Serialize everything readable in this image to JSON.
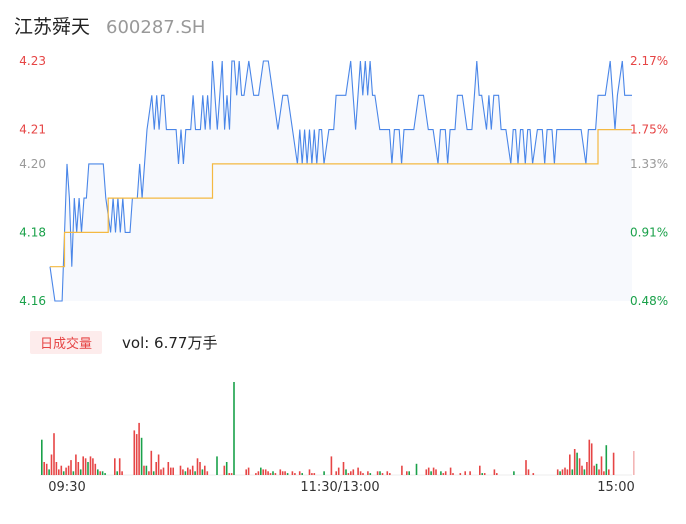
{
  "header": {
    "name": "江苏舜天",
    "code": "600287.SH"
  },
  "colors": {
    "up": "#e64545",
    "down": "#1aa14a",
    "neutral": "#999999",
    "price_line": "#4a86e8",
    "avg_line": "#f4b942",
    "area": "#f7f9fd"
  },
  "volume_panel": {
    "badge": "日成交量",
    "vol_label": "vol: 6.77万手"
  },
  "chart_data": {
    "type": "line",
    "title": "",
    "y_ticks": [
      {
        "price": "4.23",
        "pct": "2.17%",
        "tone": "up"
      },
      {
        "price": "4.21",
        "pct": "1.75%",
        "tone": "up"
      },
      {
        "price": "4.20",
        "pct": "1.33%",
        "tone": "neutral"
      },
      {
        "price": "4.18",
        "pct": "0.91%",
        "tone": "down"
      },
      {
        "price": "4.16",
        "pct": "0.48%",
        "tone": "down"
      }
    ],
    "ylim": [
      4.16,
      4.23
    ],
    "x_ticks": [
      "09:30",
      "11:30/13:00",
      "15:00"
    ],
    "minutes": 240,
    "price_series": [
      [
        0,
        4.17
      ],
      [
        2,
        4.16
      ],
      [
        5,
        4.16
      ],
      [
        7,
        4.2
      ],
      [
        8,
        4.19
      ],
      [
        9,
        4.17
      ],
      [
        10,
        4.19
      ],
      [
        11,
        4.18
      ],
      [
        12,
        4.19
      ],
      [
        13,
        4.18
      ],
      [
        14,
        4.19
      ],
      [
        15,
        4.19
      ],
      [
        16,
        4.2
      ],
      [
        20,
        4.2
      ],
      [
        22,
        4.2
      ],
      [
        23,
        4.19
      ],
      [
        25,
        4.18
      ],
      [
        26,
        4.19
      ],
      [
        27,
        4.18
      ],
      [
        28,
        4.19
      ],
      [
        29,
        4.18
      ],
      [
        30,
        4.19
      ],
      [
        31,
        4.18
      ],
      [
        33,
        4.18
      ],
      [
        34,
        4.19
      ],
      [
        36,
        4.19
      ],
      [
        37,
        4.2
      ],
      [
        38,
        4.19
      ],
      [
        40,
        4.21
      ],
      [
        42,
        4.22
      ],
      [
        43,
        4.21
      ],
      [
        44,
        4.22
      ],
      [
        45,
        4.21
      ],
      [
        46,
        4.22
      ],
      [
        47,
        4.22
      ],
      [
        48,
        4.21
      ],
      [
        50,
        4.21
      ],
      [
        52,
        4.21
      ],
      [
        53,
        4.2
      ],
      [
        54,
        4.21
      ],
      [
        55,
        4.2
      ],
      [
        56,
        4.21
      ],
      [
        58,
        4.21
      ],
      [
        59,
        4.22
      ],
      [
        60,
        4.21
      ],
      [
        62,
        4.21
      ],
      [
        63,
        4.22
      ],
      [
        64,
        4.21
      ],
      [
        65,
        4.22
      ],
      [
        66,
        4.21
      ],
      [
        67,
        4.23
      ],
      [
        68,
        4.22
      ],
      [
        69,
        4.21
      ],
      [
        70,
        4.22
      ],
      [
        71,
        4.23
      ],
      [
        72,
        4.21
      ],
      [
        73,
        4.22
      ],
      [
        74,
        4.21
      ],
      [
        75,
        4.23
      ],
      [
        76,
        4.23
      ],
      [
        77,
        4.22
      ],
      [
        78,
        4.23
      ],
      [
        79,
        4.22
      ],
      [
        80,
        4.22
      ],
      [
        82,
        4.23
      ],
      [
        84,
        4.22
      ],
      [
        86,
        4.22
      ],
      [
        88,
        4.23
      ],
      [
        90,
        4.23
      ],
      [
        92,
        4.22
      ],
      [
        94,
        4.21
      ],
      [
        96,
        4.22
      ],
      [
        98,
        4.22
      ],
      [
        100,
        4.21
      ],
      [
        102,
        4.2
      ],
      [
        103,
        4.21
      ],
      [
        104,
        4.2
      ],
      [
        105,
        4.21
      ],
      [
        106,
        4.2
      ],
      [
        107,
        4.21
      ],
      [
        108,
        4.2
      ],
      [
        109,
        4.21
      ],
      [
        110,
        4.2
      ],
      [
        111,
        4.21
      ],
      [
        112,
        4.21
      ],
      [
        113,
        4.2
      ],
      [
        115,
        4.21
      ],
      [
        117,
        4.21
      ],
      [
        118,
        4.22
      ],
      [
        120,
        4.22
      ],
      [
        122,
        4.22
      ],
      [
        124,
        4.23
      ],
      [
        125,
        4.22
      ],
      [
        126,
        4.21
      ],
      [
        127,
        4.22
      ],
      [
        128,
        4.23
      ],
      [
        129,
        4.22
      ],
      [
        130,
        4.23
      ],
      [
        131,
        4.22
      ],
      [
        132,
        4.23
      ],
      [
        133,
        4.22
      ],
      [
        134,
        4.22
      ],
      [
        136,
        4.21
      ],
      [
        138,
        4.21
      ],
      [
        140,
        4.21
      ],
      [
        141,
        4.2
      ],
      [
        142,
        4.21
      ],
      [
        144,
        4.21
      ],
      [
        145,
        4.2
      ],
      [
        146,
        4.21
      ],
      [
        148,
        4.21
      ],
      [
        150,
        4.21
      ],
      [
        152,
        4.22
      ],
      [
        154,
        4.22
      ],
      [
        156,
        4.21
      ],
      [
        158,
        4.21
      ],
      [
        160,
        4.2
      ],
      [
        161,
        4.21
      ],
      [
        163,
        4.21
      ],
      [
        164,
        4.2
      ],
      [
        165,
        4.21
      ],
      [
        167,
        4.21
      ],
      [
        168,
        4.22
      ],
      [
        170,
        4.22
      ],
      [
        172,
        4.21
      ],
      [
        174,
        4.21
      ],
      [
        175,
        4.22
      ],
      [
        176,
        4.23
      ],
      [
        177,
        4.22
      ],
      [
        178,
        4.22
      ],
      [
        180,
        4.21
      ],
      [
        181,
        4.22
      ],
      [
        182,
        4.21
      ],
      [
        183,
        4.22
      ],
      [
        185,
        4.22
      ],
      [
        186,
        4.21
      ],
      [
        188,
        4.21
      ],
      [
        190,
        4.2
      ],
      [
        191,
        4.21
      ],
      [
        192,
        4.21
      ],
      [
        193,
        4.2
      ],
      [
        194,
        4.21
      ],
      [
        195,
        4.21
      ],
      [
        196,
        4.2
      ],
      [
        197,
        4.21
      ],
      [
        198,
        4.21
      ],
      [
        199,
        4.2
      ],
      [
        201,
        4.21
      ],
      [
        203,
        4.21
      ],
      [
        204,
        4.2
      ],
      [
        205,
        4.21
      ],
      [
        207,
        4.21
      ],
      [
        208,
        4.2
      ],
      [
        209,
        4.21
      ],
      [
        211,
        4.21
      ],
      [
        213,
        4.21
      ],
      [
        215,
        4.21
      ],
      [
        217,
        4.21
      ],
      [
        219,
        4.21
      ],
      [
        221,
        4.2
      ],
      [
        222,
        4.21
      ],
      [
        223,
        4.21
      ],
      [
        224,
        4.21
      ],
      [
        225,
        4.21
      ],
      [
        226,
        4.22
      ],
      [
        227,
        4.22
      ],
      [
        228,
        4.22
      ],
      [
        229,
        4.22
      ],
      [
        231,
        4.23
      ],
      [
        232,
        4.22
      ],
      [
        233,
        4.21
      ],
      [
        234,
        4.22
      ],
      [
        236,
        4.23
      ],
      [
        237,
        4.22
      ],
      [
        238,
        4.22
      ],
      [
        240,
        4.22
      ]
    ],
    "avg_series": [
      [
        0,
        4.17
      ],
      [
        5,
        4.17
      ],
      [
        6,
        4.18
      ],
      [
        23,
        4.18
      ],
      [
        24,
        4.19
      ],
      [
        66,
        4.19
      ],
      [
        67,
        4.2
      ],
      [
        225,
        4.2
      ],
      [
        226,
        4.21
      ],
      [
        240,
        4.21
      ]
    ],
    "volume": {
      "max": 100,
      "bars": [
        [
          0,
          38,
          "down"
        ],
        [
          1,
          14,
          "up"
        ],
        [
          2,
          12,
          "up"
        ],
        [
          3,
          6,
          "down"
        ],
        [
          4,
          22,
          "up"
        ],
        [
          5,
          45,
          "up"
        ],
        [
          6,
          14,
          "up"
        ],
        [
          7,
          6,
          "up"
        ],
        [
          8,
          10,
          "up"
        ],
        [
          9,
          4,
          "down"
        ],
        [
          10,
          8,
          "up"
        ],
        [
          11,
          10,
          "up"
        ],
        [
          12,
          16,
          "up"
        ],
        [
          13,
          4,
          "down"
        ],
        [
          14,
          22,
          "up"
        ],
        [
          15,
          14,
          "up"
        ],
        [
          16,
          6,
          "down"
        ],
        [
          17,
          20,
          "up"
        ],
        [
          18,
          18,
          "up"
        ],
        [
          19,
          14,
          "down"
        ],
        [
          20,
          20,
          "up"
        ],
        [
          21,
          18,
          "up"
        ],
        [
          22,
          12,
          "up"
        ],
        [
          23,
          6,
          "down"
        ],
        [
          24,
          4,
          "up"
        ],
        [
          25,
          4,
          "down"
        ],
        [
          26,
          2,
          "down"
        ],
        [
          30,
          18,
          "up"
        ],
        [
          31,
          4,
          "down"
        ],
        [
          32,
          18,
          "up"
        ],
        [
          33,
          4,
          "up"
        ],
        [
          38,
          48,
          "up"
        ],
        [
          39,
          44,
          "up"
        ],
        [
          40,
          56,
          "up"
        ],
        [
          41,
          40,
          "down"
        ],
        [
          42,
          10,
          "up"
        ],
        [
          43,
          10,
          "down"
        ],
        [
          44,
          4,
          "up"
        ],
        [
          45,
          26,
          "up"
        ],
        [
          46,
          4,
          "down"
        ],
        [
          47,
          14,
          "up"
        ],
        [
          48,
          22,
          "up"
        ],
        [
          49,
          6,
          "up"
        ],
        [
          50,
          8,
          "up"
        ],
        [
          52,
          14,
          "up"
        ],
        [
          53,
          8,
          "up"
        ],
        [
          54,
          8,
          "up"
        ],
        [
          57,
          10,
          "up"
        ],
        [
          58,
          6,
          "up"
        ],
        [
          59,
          4,
          "down"
        ],
        [
          60,
          8,
          "up"
        ],
        [
          61,
          6,
          "up"
        ],
        [
          62,
          10,
          "up"
        ],
        [
          63,
          4,
          "down"
        ],
        [
          64,
          18,
          "up"
        ],
        [
          65,
          14,
          "up"
        ],
        [
          66,
          6,
          "down"
        ],
        [
          67,
          10,
          "up"
        ],
        [
          68,
          4,
          "up"
        ],
        [
          72,
          20,
          "down"
        ],
        [
          75,
          10,
          "up"
        ],
        [
          76,
          14,
          "down"
        ],
        [
          77,
          2,
          "up"
        ],
        [
          78,
          2,
          "up"
        ],
        [
          79,
          100,
          "down"
        ],
        [
          84,
          6,
          "up"
        ],
        [
          85,
          8,
          "up"
        ],
        [
          88,
          2,
          "up"
        ],
        [
          89,
          4,
          "up"
        ],
        [
          90,
          8,
          "down"
        ],
        [
          91,
          6,
          "up"
        ],
        [
          92,
          6,
          "up"
        ],
        [
          93,
          4,
          "up"
        ],
        [
          94,
          2,
          "up"
        ],
        [
          95,
          4,
          "down"
        ],
        [
          96,
          2,
          "up"
        ],
        [
          98,
          6,
          "up"
        ],
        [
          99,
          4,
          "up"
        ],
        [
          100,
          4,
          "up"
        ],
        [
          101,
          2,
          "down"
        ],
        [
          103,
          4,
          "up"
        ],
        [
          104,
          2,
          "up"
        ],
        [
          106,
          4,
          "up"
        ],
        [
          107,
          2,
          "down"
        ],
        [
          110,
          6,
          "up"
        ],
        [
          111,
          2,
          "up"
        ],
        [
          112,
          2,
          "up"
        ],
        [
          116,
          4,
          "down"
        ],
        [
          119,
          20,
          "up"
        ],
        [
          121,
          4,
          "up"
        ],
        [
          122,
          8,
          "up"
        ],
        [
          124,
          14,
          "up"
        ],
        [
          125,
          6,
          "down"
        ],
        [
          126,
          2,
          "up"
        ],
        [
          127,
          4,
          "up"
        ],
        [
          128,
          6,
          "up"
        ],
        [
          130,
          8,
          "up"
        ],
        [
          131,
          4,
          "up"
        ],
        [
          132,
          2,
          "up"
        ],
        [
          134,
          4,
          "up"
        ],
        [
          135,
          2,
          "down"
        ],
        [
          138,
          4,
          "up"
        ],
        [
          139,
          4,
          "down"
        ],
        [
          140,
          2,
          "up"
        ],
        [
          142,
          4,
          "up"
        ],
        [
          143,
          2,
          "up"
        ],
        [
          148,
          10,
          "up"
        ],
        [
          150,
          4,
          "up"
        ],
        [
          151,
          4,
          "down"
        ],
        [
          154,
          12,
          "down"
        ],
        [
          158,
          6,
          "up"
        ],
        [
          159,
          8,
          "up"
        ],
        [
          160,
          4,
          "down"
        ],
        [
          161,
          8,
          "up"
        ],
        [
          162,
          6,
          "up"
        ],
        [
          164,
          4,
          "down"
        ],
        [
          165,
          2,
          "up"
        ],
        [
          166,
          4,
          "up"
        ],
        [
          168,
          8,
          "up"
        ],
        [
          169,
          2,
          "up"
        ],
        [
          172,
          2,
          "up"
        ],
        [
          174,
          4,
          "up"
        ],
        [
          176,
          4,
          "up"
        ],
        [
          180,
          10,
          "up"
        ],
        [
          181,
          2,
          "down"
        ],
        [
          182,
          2,
          "up"
        ],
        [
          186,
          6,
          "up"
        ],
        [
          187,
          2,
          "up"
        ],
        [
          194,
          4,
          "down"
        ],
        [
          199,
          16,
          "up"
        ],
        [
          200,
          6,
          "up"
        ],
        [
          202,
          2,
          "up"
        ],
        [
          212,
          6,
          "up"
        ],
        [
          213,
          4,
          "down"
        ],
        [
          214,
          6,
          "up"
        ],
        [
          215,
          8,
          "up"
        ],
        [
          216,
          6,
          "up"
        ],
        [
          217,
          22,
          "up"
        ],
        [
          218,
          6,
          "down"
        ],
        [
          219,
          28,
          "up"
        ],
        [
          220,
          24,
          "down"
        ],
        [
          221,
          18,
          "up"
        ],
        [
          222,
          10,
          "up"
        ],
        [
          223,
          6,
          "down"
        ],
        [
          224,
          14,
          "up"
        ],
        [
          225,
          38,
          "up"
        ],
        [
          226,
          34,
          "up"
        ],
        [
          227,
          10,
          "up"
        ],
        [
          228,
          12,
          "down"
        ],
        [
          229,
          6,
          "up"
        ],
        [
          230,
          20,
          "up"
        ],
        [
          231,
          4,
          "up"
        ],
        [
          232,
          32,
          "down"
        ],
        [
          233,
          6,
          "up"
        ],
        [
          235,
          24,
          "up"
        ]
      ]
    }
  }
}
